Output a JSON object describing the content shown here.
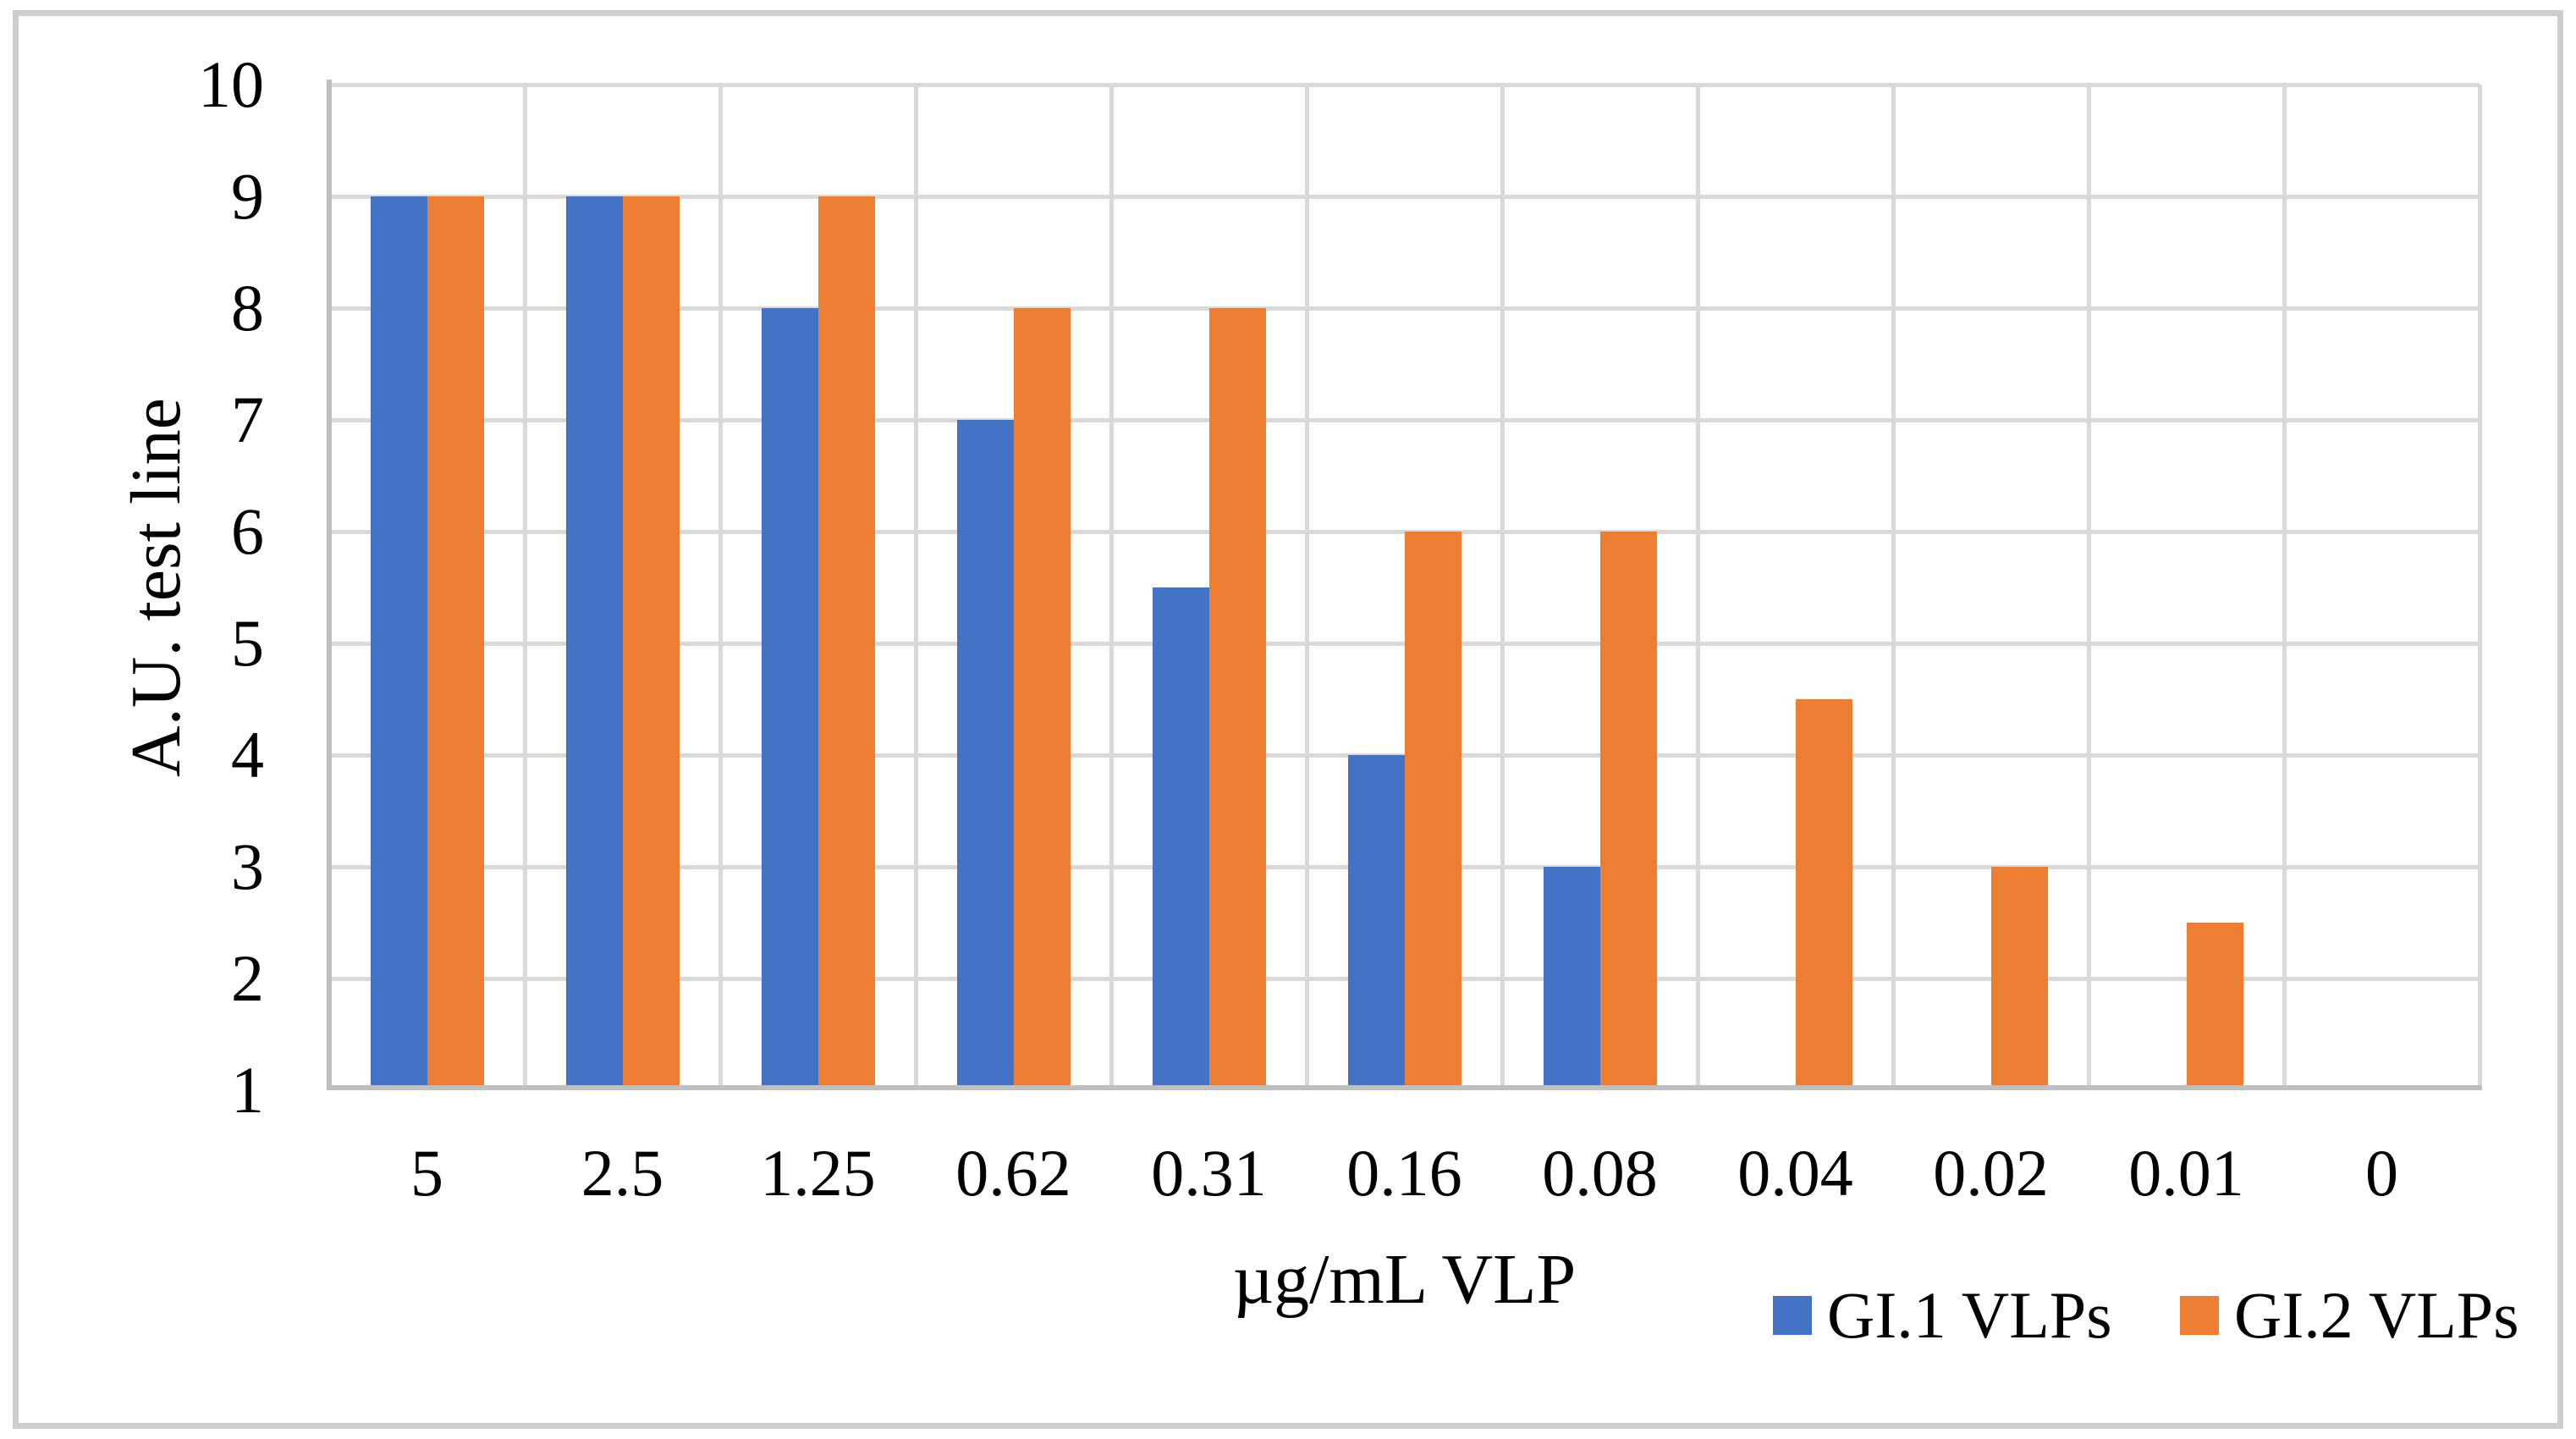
{
  "figure": {
    "background": "#FFFFFF",
    "border_color": "#CDCDCD"
  },
  "chart_data": {
    "type": "bar",
    "title": "",
    "categories": [
      "5",
      "2.5",
      "1.25",
      "0.62",
      "0.31",
      "0.16",
      "0.08",
      "0.04",
      "0.02",
      "0.01",
      "0"
    ],
    "series": [
      {
        "name": "GI.1 VLPs",
        "color": "#4472C4",
        "values": [
          9,
          9,
          8,
          7,
          5.5,
          4,
          3,
          null,
          null,
          null,
          null
        ]
      },
      {
        "name": "GI.2 VLPs",
        "color": "#ED7D31",
        "values": [
          9,
          9,
          9,
          8,
          8,
          6,
          6,
          4.5,
          3,
          2.5,
          null
        ]
      }
    ],
    "xlabel": "µg/mL VLP",
    "ylabel": "A.U. test line",
    "ylim": [
      1,
      10
    ],
    "yticks": [
      1,
      2,
      3,
      4,
      5,
      6,
      7,
      8,
      9,
      10
    ],
    "grid": true,
    "legend_position": "bottom-right",
    "colors": {
      "gridline": "#D9D9D9",
      "axis_line": "#BFBFBF",
      "text": "#000000"
    }
  }
}
